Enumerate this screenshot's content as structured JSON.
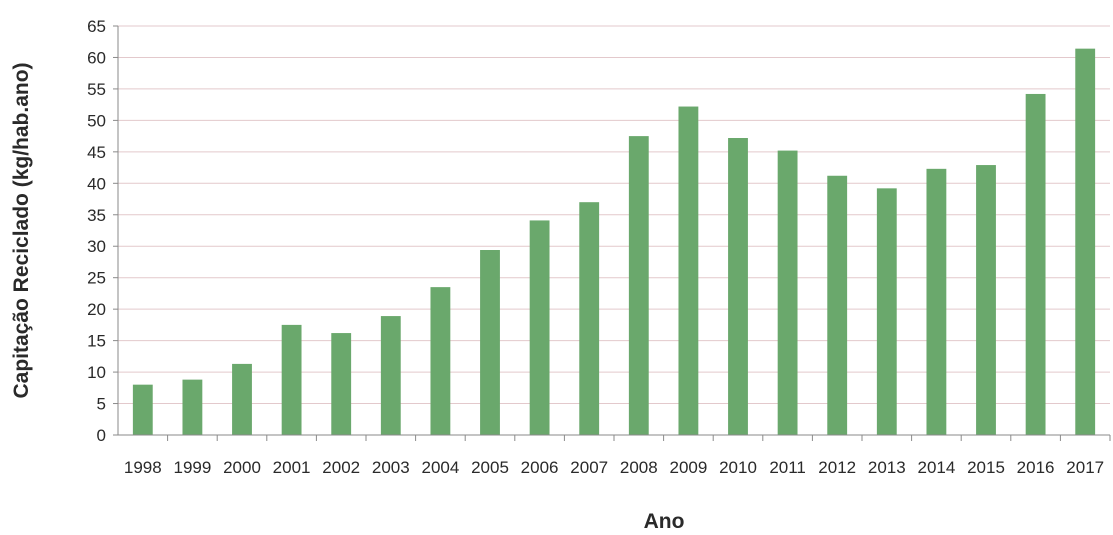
{
  "chart_data": {
    "type": "bar",
    "title": "",
    "xlabel": "Ano",
    "ylabel": "Capitação Reciclado (kg/hab.ano)",
    "categories": [
      "1998",
      "1999",
      "2000",
      "2001",
      "2002",
      "2003",
      "2004",
      "2005",
      "2006",
      "2007",
      "2008",
      "2009",
      "2010",
      "2011",
      "2012",
      "2013",
      "2014",
      "2015",
      "2016",
      "2017"
    ],
    "values": [
      8.0,
      8.8,
      11.3,
      17.5,
      16.2,
      18.9,
      23.5,
      29.4,
      34.1,
      37.0,
      47.5,
      52.2,
      47.2,
      45.2,
      41.2,
      39.2,
      42.3,
      42.9,
      54.2,
      61.4
    ],
    "ylim": [
      0,
      65
    ],
    "yticks": [
      0,
      5,
      10,
      15,
      20,
      25,
      30,
      35,
      40,
      45,
      50,
      55,
      60,
      65
    ],
    "grid": true,
    "colors": {
      "bar": "#6aa86c",
      "gridline": "#e3c9cc",
      "axis": "#8a8a8a"
    }
  }
}
